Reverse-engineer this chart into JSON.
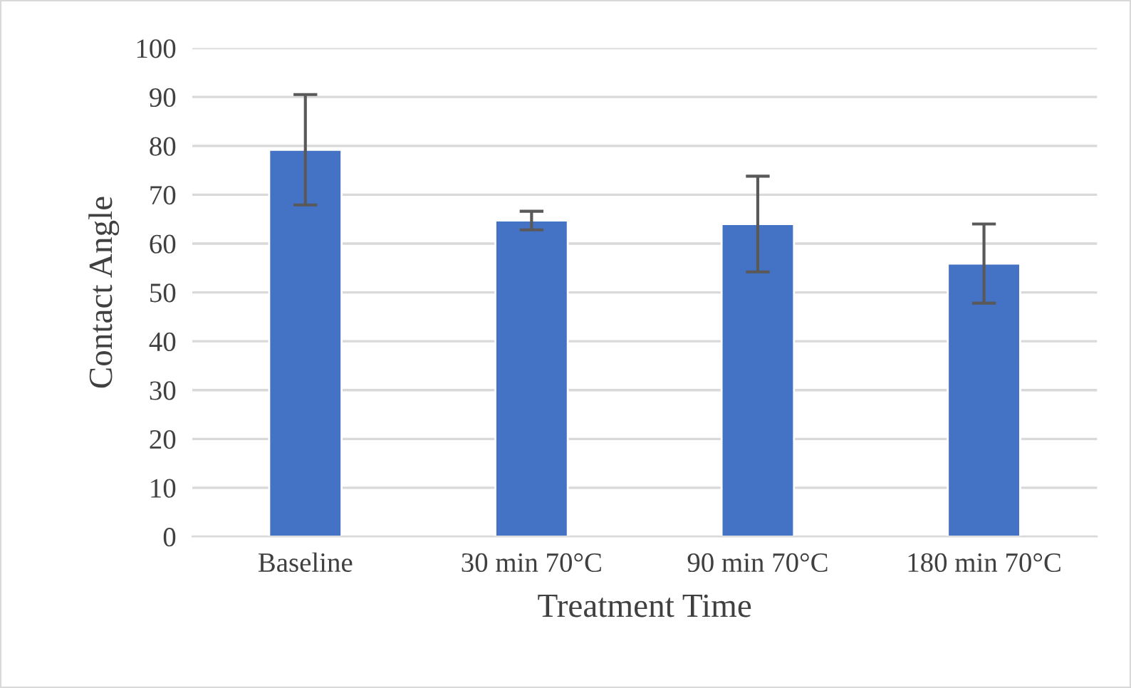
{
  "chart_data": {
    "type": "bar",
    "xlabel": "Treatment Time",
    "ylabel": "Contact Angle",
    "categories": [
      "Baseline",
      "30 min 70°C",
      "90 min 70°C",
      "180 min 70°C"
    ],
    "values": [
      79.2,
      64.7,
      64.0,
      55.9
    ],
    "errors": [
      11.3,
      1.9,
      9.8,
      8.1
    ],
    "color": "#4472c4",
    "ylim": [
      0,
      100
    ],
    "yticks": [
      0,
      10,
      20,
      30,
      40,
      50,
      60,
      70,
      80,
      90,
      100
    ],
    "grid": "y"
  }
}
